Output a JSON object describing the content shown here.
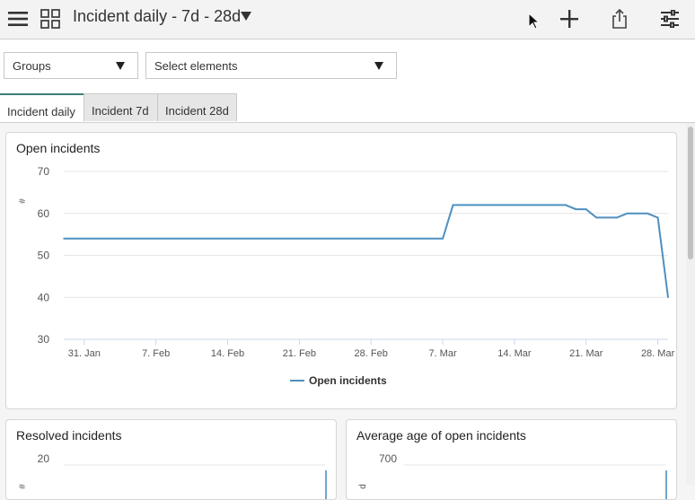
{
  "header": {
    "title": "Incident daily - 7d - 28d",
    "icons": [
      "hamburger-menu-icon",
      "grid-apps-icon",
      "title-dropdown-icon",
      "mouse-cursor-icon",
      "plus-icon",
      "share-icon",
      "filter-sliders-icon"
    ]
  },
  "filters": {
    "groups_label": "Groups",
    "elements_label": "Select elements"
  },
  "tabs": [
    {
      "label": "Incident daily",
      "active": true
    },
    {
      "label": "Incident 7d",
      "active": false
    },
    {
      "label": "Incident 28d",
      "active": false
    }
  ],
  "cards": {
    "open": {
      "title": "Open incidents"
    },
    "resolved": {
      "title": "Resolved incidents"
    },
    "avg_age": {
      "title": "Average age of open incidents"
    }
  },
  "chart_data": [
    {
      "type": "line",
      "title": "Open incidents",
      "ylabel": "#",
      "xlabel": "",
      "ylim": [
        30,
        70
      ],
      "yticks": [
        "70",
        "60",
        "50",
        "40",
        "30"
      ],
      "xticks": [
        "31. Jan",
        "7. Feb",
        "14. Feb",
        "21. Feb",
        "28. Feb",
        "7. Mar",
        "14. Mar",
        "21. Mar",
        "28. Mar"
      ],
      "legend": "bottom-center",
      "grid": true,
      "color": "#4e8fc0",
      "series": [
        {
          "name": "Open incidents",
          "points": [
            [
              "2021-01-29",
              54
            ],
            [
              "2021-03-07",
              54
            ],
            [
              "2021-03-08",
              62
            ],
            [
              "2021-03-19",
              62
            ],
            [
              "2021-03-20",
              61
            ],
            [
              "2021-03-21",
              61
            ],
            [
              "2021-03-22",
              59
            ],
            [
              "2021-03-24",
              59
            ],
            [
              "2021-03-25",
              60
            ],
            [
              "2021-03-27",
              60
            ],
            [
              "2021-03-28",
              59
            ],
            [
              "2021-03-29",
              40
            ]
          ]
        }
      ]
    },
    {
      "type": "line",
      "title": "Resolved incidents",
      "ylabel": "#",
      "yticks": [
        "20"
      ],
      "color": "#4e8fc0"
    },
    {
      "type": "line",
      "title": "Average age of open incidents",
      "ylabel": "d",
      "yticks": [
        "700"
      ],
      "color": "#4e8fc0"
    }
  ]
}
